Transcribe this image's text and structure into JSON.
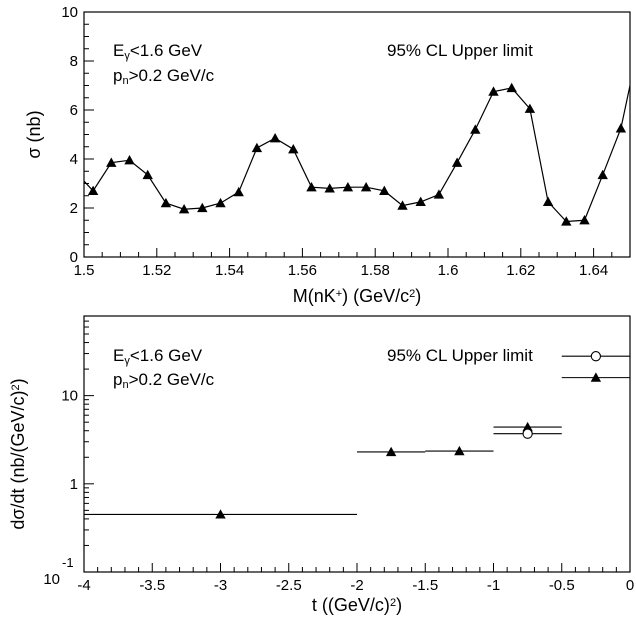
{
  "chart_data": [
    {
      "type": "line",
      "annotations": [
        {
          "parts": [
            {
              "t": "E"
            },
            {
              "t": "γ",
              "sub": true
            },
            {
              "t": "<1.6 GeV"
            }
          ]
        },
        {
          "parts": [
            {
              "t": "p"
            },
            {
              "t": "n",
              "sub": true
            },
            {
              "t": ">0.2 GeV/c"
            }
          ]
        },
        {
          "parts": [
            {
              "t": "95% CL Upper limit"
            }
          ]
        }
      ],
      "xlabel_parts": [
        {
          "t": "M(nK"
        },
        {
          "t": "+",
          "sup": true
        },
        {
          "t": ") (GeV/c"
        },
        {
          "t": "2",
          "sup": true
        },
        {
          "t": ")"
        }
      ],
      "ylabel_parts": [
        {
          "t": "σ (nb)"
        }
      ],
      "xlim": [
        1.5,
        1.65
      ],
      "ylim": [
        0,
        10
      ],
      "x_ticks": [
        1.5,
        1.52,
        1.54,
        1.56,
        1.58,
        1.6,
        1.62,
        1.64
      ],
      "x_tick_labels": [
        "1.5",
        "1.52",
        "1.54",
        "1.56",
        "1.58",
        "1.6",
        "1.62",
        "1.64"
      ],
      "y_ticks": [
        0,
        2,
        4,
        6,
        8,
        10
      ],
      "y_tick_labels": [
        "0",
        "2",
        "4",
        "6",
        "8",
        "10"
      ],
      "series": [
        {
          "marker": "triangle-filled",
          "x": [
            1.5025,
            1.5075,
            1.5125,
            1.5175,
            1.5225,
            1.5275,
            1.5325,
            1.5375,
            1.5425,
            1.5475,
            1.5525,
            1.5575,
            1.5625,
            1.5675,
            1.5725,
            1.5775,
            1.5825,
            1.5875,
            1.5925,
            1.5975,
            1.6025,
            1.6075,
            1.6125,
            1.6175,
            1.6225,
            1.6275,
            1.6325,
            1.6375,
            1.6425,
            1.6475
          ],
          "y": [
            2.7,
            3.85,
            3.95,
            3.35,
            2.2,
            1.95,
            2.0,
            2.2,
            2.65,
            4.45,
            4.85,
            4.4,
            2.85,
            2.8,
            2.85,
            2.85,
            2.7,
            2.1,
            2.25,
            2.55,
            3.85,
            5.2,
            6.75,
            6.9,
            6.05,
            2.25,
            1.45,
            1.5,
            3.35,
            5.25
          ]
        }
      ],
      "line_start": [
        1.5,
        3.1
      ],
      "line_end": [
        1.65,
        7.0
      ]
    },
    {
      "type": "scatter",
      "annotations": [
        {
          "parts": [
            {
              "t": "E"
            },
            {
              "t": "γ",
              "sub": true
            },
            {
              "t": "<1.6 GeV"
            }
          ]
        },
        {
          "parts": [
            {
              "t": "p"
            },
            {
              "t": "n",
              "sub": true
            },
            {
              "t": ">0.2 GeV/c"
            }
          ]
        },
        {
          "parts": [
            {
              "t": "95% CL Upper limit"
            }
          ]
        }
      ],
      "xlabel_parts": [
        {
          "t": "t ((GeV/c)"
        },
        {
          "t": "2",
          "sup": true
        },
        {
          "t": ")"
        }
      ],
      "ylabel_parts": [
        {
          "t": "dσ/dt (nb/(GeV/c)"
        },
        {
          "t": "2",
          "sup": true
        },
        {
          "t": ")"
        }
      ],
      "xlim": [
        -4,
        0
      ],
      "ylim": [
        0.1,
        80
      ],
      "y_scale": "log",
      "x_ticks": [
        -4,
        -3.5,
        -3,
        -2.5,
        -2,
        -1.5,
        -1,
        -0.5,
        0
      ],
      "x_tick_labels": [
        "-4",
        "-3.5",
        "-3",
        "-2.5",
        "-2",
        "-1.5",
        "-1",
        "-0.5",
        "0"
      ],
      "y_ticks": [
        1,
        10
      ],
      "y_tick_labels": [
        "1",
        "10"
      ],
      "y_bottom_label_base": "10",
      "y_bottom_label_exp": "-1",
      "series": [
        {
          "marker": "triangle-filled",
          "points": [
            {
              "x": -3.0,
              "y": 0.45,
              "xmin": -4.0,
              "xmax": -2.0
            },
            {
              "x": -1.75,
              "y": 2.3,
              "xmin": -2.0,
              "xmax": -1.5
            },
            {
              "x": -1.25,
              "y": 2.35,
              "xmin": -1.5,
              "xmax": -1.0
            },
            {
              "x": -0.75,
              "y": 4.4,
              "xmin": -1.0,
              "xmax": -0.5
            },
            {
              "x": -0.25,
              "y": 16.0,
              "xmin": -0.5,
              "xmax": 0.0
            }
          ]
        },
        {
          "marker": "circle-open",
          "points": [
            {
              "x": -0.75,
              "y": 3.7,
              "xmin": -1.0,
              "xmax": -0.5
            },
            {
              "x": -0.25,
              "y": 28.0,
              "xmin": -0.5,
              "xmax": 0.0
            }
          ]
        }
      ]
    }
  ]
}
